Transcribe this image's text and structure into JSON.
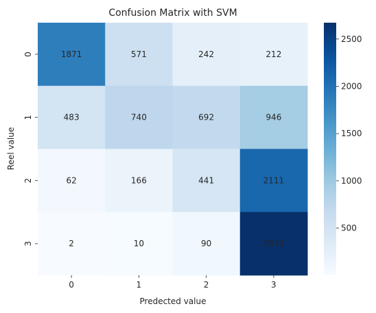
{
  "chart_data": {
    "type": "heatmap",
    "title": "Confusion Matrix with SVM",
    "xlabel": "Predected value",
    "ylabel": "Reel value",
    "x_categories": [
      "0",
      "1",
      "2",
      "3"
    ],
    "y_categories": [
      "0",
      "1",
      "2",
      "3"
    ],
    "values": [
      [
        1871,
        571,
        242,
        212
      ],
      [
        483,
        740,
        692,
        946
      ],
      [
        62,
        166,
        441,
        2111
      ],
      [
        2,
        10,
        90,
        2673
      ]
    ],
    "colormap": "Blues",
    "color_range": [
      2,
      2673
    ],
    "colorbar_ticks": [
      "500",
      "1000",
      "1500",
      "2000",
      "2500"
    ],
    "colorbar_tick_values": [
      500,
      1000,
      1500,
      2000,
      2500
    ],
    "grid": false,
    "legend": "colorbar-right"
  }
}
